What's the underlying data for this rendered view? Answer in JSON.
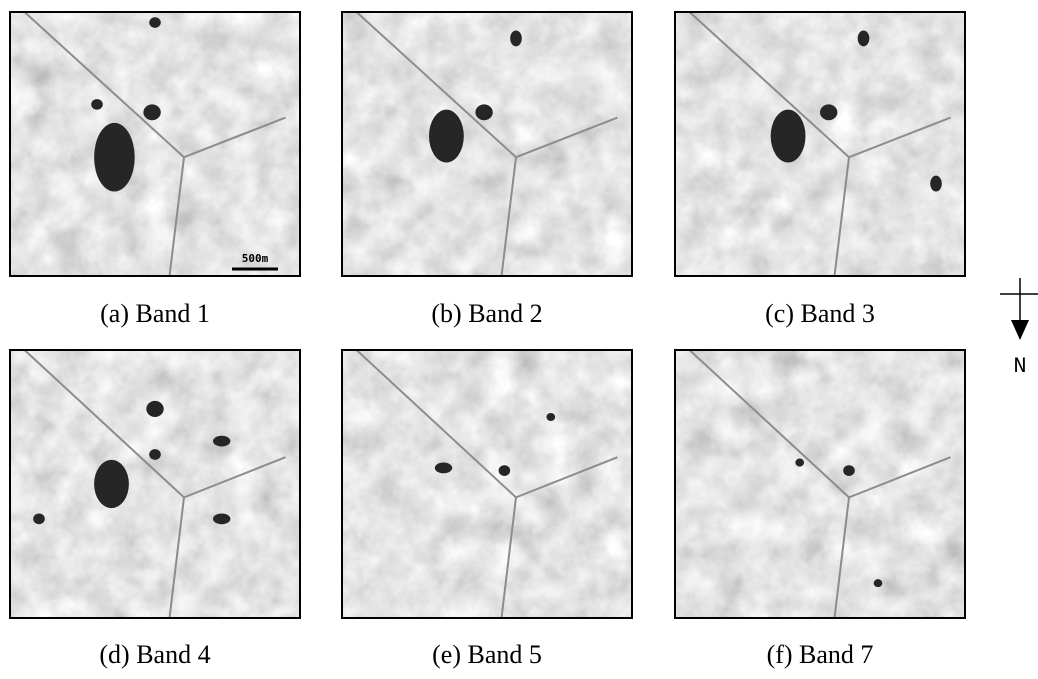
{
  "figure": {
    "panels": [
      {
        "caption": "(a) Band 1",
        "scale_bar": "500m"
      },
      {
        "caption": "(b) Band 2"
      },
      {
        "caption": "(c) Band 3"
      },
      {
        "caption": "(d) Band 4"
      },
      {
        "caption": "(e) Band 5"
      },
      {
        "caption": "(f) Band 7"
      }
    ],
    "north_label": "N"
  }
}
